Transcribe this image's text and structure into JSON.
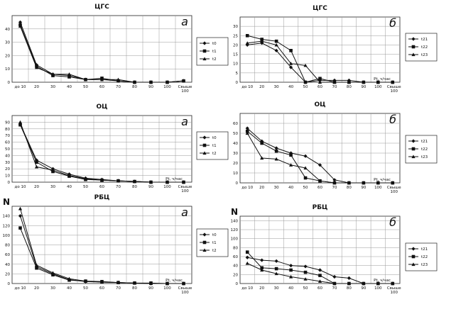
{
  "chart_data": [
    {
      "type": "line",
      "title": "ЦГС",
      "panel_letter": "а",
      "ylabel": "",
      "xlabel": "",
      "categories": [
        "до 10",
        "20",
        "30",
        "40",
        "50",
        "60",
        "70",
        "80",
        "90",
        "100",
        "Свыше 100"
      ],
      "ylim": [
        0,
        50
      ],
      "yticks": [
        0,
        10,
        20,
        30,
        40
      ],
      "grid": true,
      "legend": "right",
      "series": [
        {
          "name": "t0",
          "marker": "diamond",
          "values": [
            45,
            13,
            6,
            5,
            2,
            2,
            1,
            0,
            0,
            0,
            1
          ]
        },
        {
          "name": "t1",
          "marker": "square",
          "values": [
            43,
            12,
            5,
            4,
            2,
            3,
            1,
            0,
            0,
            0,
            1
          ]
        },
        {
          "name": "t2",
          "marker": "triangle",
          "values": [
            42,
            11,
            6,
            6,
            2,
            2,
            2,
            0,
            0,
            0,
            1
          ]
        }
      ]
    },
    {
      "type": "line",
      "title": "ЦГС",
      "panel_letter": "б",
      "ylabel": "",
      "xlabel": "Pt, ч/час",
      "categories": [
        "до 10",
        "20",
        "30",
        "40",
        "50",
        "60",
        "70",
        "80",
        "90",
        "100",
        "Свыше 100"
      ],
      "ylim": [
        0,
        35
      ],
      "yticks": [
        0,
        5,
        10,
        15,
        20,
        25,
        30
      ],
      "grid": true,
      "legend": "right",
      "series": [
        {
          "name": "t21",
          "marker": "diamond",
          "values": [
            20,
            21,
            17,
            8,
            0,
            1,
            1,
            1,
            0,
            0,
            0
          ]
        },
        {
          "name": "t22",
          "marker": "square",
          "values": [
            25,
            23,
            22,
            17,
            0,
            2,
            0,
            0,
            0,
            0,
            0
          ]
        },
        {
          "name": "t23",
          "marker": "triangle",
          "values": [
            21,
            22,
            20,
            10,
            9,
            0,
            0,
            0,
            0,
            0,
            0
          ]
        }
      ]
    },
    {
      "type": "line",
      "title": "ОЦ",
      "panel_letter": "а",
      "ylabel": "",
      "xlabel": "Pt, ч/час",
      "categories": [
        "до 10",
        "20",
        "30",
        "40",
        "50",
        "60",
        "70",
        "80",
        "90",
        "100",
        "Свыше 100"
      ],
      "ylim": [
        0,
        100
      ],
      "yticks": [
        0,
        10,
        20,
        30,
        40,
        50,
        60,
        70,
        80,
        90
      ],
      "grid": true,
      "legend": "right",
      "series": [
        {
          "name": "t0",
          "marker": "diamond",
          "values": [
            87,
            33,
            20,
            12,
            6,
            4,
            2,
            1,
            0,
            0,
            0
          ]
        },
        {
          "name": "t1",
          "marker": "square",
          "values": [
            86,
            30,
            16,
            9,
            4,
            3,
            2,
            1,
            0,
            0,
            0
          ]
        },
        {
          "name": "t2",
          "marker": "triangle",
          "values": [
            90,
            23,
            18,
            10,
            5,
            3,
            2,
            1,
            0,
            0,
            0
          ]
        }
      ]
    },
    {
      "type": "line",
      "title": "ОЦ",
      "panel_letter": "б",
      "ylabel": "",
      "xlabel": "Pt, ч/час",
      "categories": [
        "до 10",
        "20",
        "30",
        "40",
        "50",
        "60",
        "70",
        "80",
        "90",
        "100",
        "Свыше 100"
      ],
      "ylim": [
        0,
        70
      ],
      "yticks": [
        0,
        10,
        20,
        30,
        40,
        50,
        60
      ],
      "grid": true,
      "legend": "right",
      "series": [
        {
          "name": "t21",
          "marker": "diamond",
          "values": [
            55,
            42,
            35,
            30,
            27,
            18,
            3,
            0,
            0,
            0,
            0
          ]
        },
        {
          "name": "t22",
          "marker": "square",
          "values": [
            52,
            40,
            32,
            28,
            5,
            2,
            0,
            0,
            0,
            0,
            0
          ]
        },
        {
          "name": "t23",
          "marker": "triangle",
          "values": [
            50,
            25,
            24,
            18,
            15,
            2,
            0,
            0,
            0,
            0,
            0
          ]
        }
      ]
    },
    {
      "type": "line",
      "title": "РБЦ",
      "panel_letter": "а",
      "ylabel": "N",
      "xlabel": "Pt, ч/час",
      "categories": [
        "до 10",
        "20",
        "30",
        "40",
        "50",
        "60",
        "70",
        "80",
        "90",
        "100",
        "Свыше 100"
      ],
      "ylim": [
        0,
        160
      ],
      "yticks": [
        0,
        20,
        40,
        60,
        80,
        100,
        120,
        140
      ],
      "grid": true,
      "legend": "right",
      "series": [
        {
          "name": "t0",
          "marker": "diamond",
          "values": [
            140,
            35,
            20,
            8,
            4,
            3,
            2,
            1,
            0,
            0,
            0
          ]
        },
        {
          "name": "t1",
          "marker": "square",
          "values": [
            115,
            32,
            18,
            7,
            5,
            4,
            2,
            1,
            1,
            0,
            0
          ]
        },
        {
          "name": "t2",
          "marker": "triangle",
          "values": [
            155,
            38,
            22,
            10,
            5,
            3,
            2,
            1,
            0,
            0,
            0
          ]
        }
      ]
    },
    {
      "type": "line",
      "title": "РБЦ",
      "panel_letter": "б",
      "ylabel": "N",
      "xlabel": "Pt, ч/час",
      "categories": [
        "до 10",
        "20",
        "30",
        "40",
        "50",
        "60",
        "70",
        "80",
        "90",
        "100",
        "Свыше 100"
      ],
      "ylim": [
        0,
        150
      ],
      "yticks": [
        0,
        20,
        40,
        60,
        80,
        100,
        120,
        140
      ],
      "grid": true,
      "legend": "right",
      "series": [
        {
          "name": "t21",
          "marker": "diamond",
          "values": [
            58,
            52,
            50,
            40,
            38,
            30,
            15,
            12,
            0,
            0,
            0
          ]
        },
        {
          "name": "t22",
          "marker": "square",
          "values": [
            70,
            35,
            33,
            30,
            25,
            18,
            0,
            0,
            0,
            0,
            0
          ]
        },
        {
          "name": "t23",
          "marker": "triangle",
          "values": [
            45,
            30,
            22,
            15,
            10,
            5,
            0,
            0,
            0,
            0,
            0
          ]
        }
      ]
    }
  ]
}
